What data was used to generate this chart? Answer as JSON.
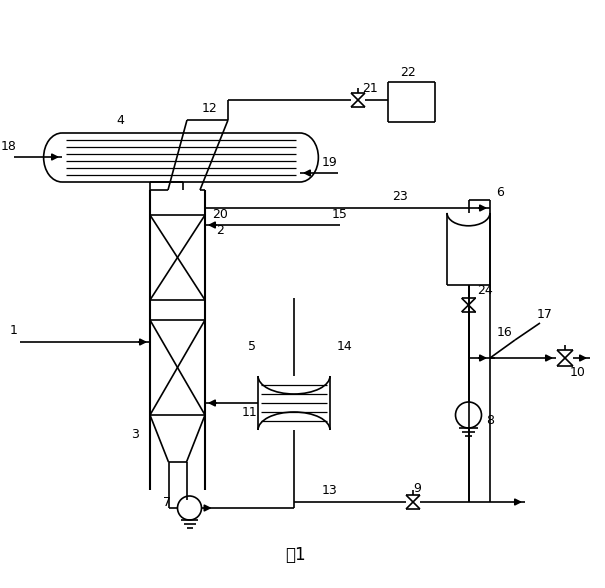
{
  "bg_color": "#ffffff",
  "line_color": "#000000",
  "lw": 1.2,
  "figsize": [
    6.05,
    5.88
  ],
  "dpi": 100,
  "title": "图1"
}
